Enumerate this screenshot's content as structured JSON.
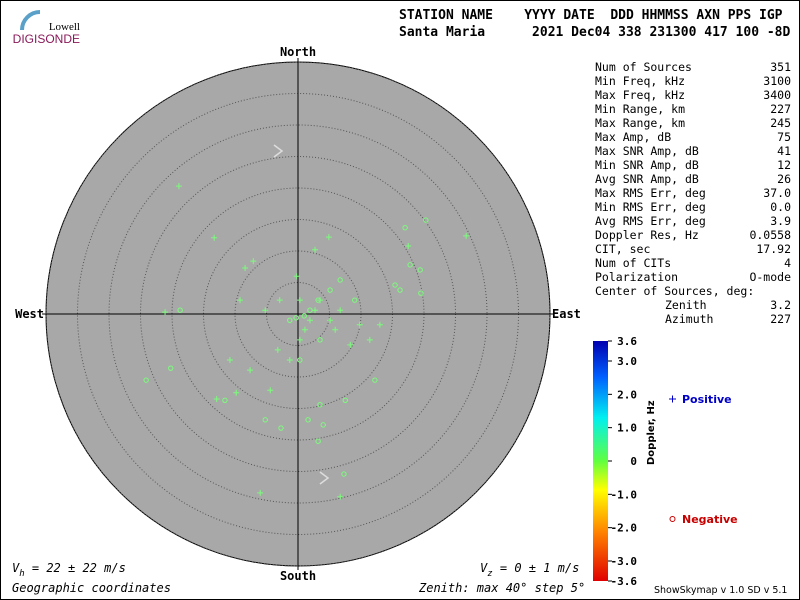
{
  "logo": {
    "top": "Lowell",
    "bottom": "DIGISONDE"
  },
  "header": {
    "line1": "STATION NAME    YYYY DATE  DDD HHMMSS AXN PPS IGP",
    "line2": "Santa Maria      2021 Dec04 338 231300 417 100 -8D"
  },
  "stats": {
    "rows": [
      [
        "Num of Sources",
        "351"
      ],
      [
        "Min Freq, kHz",
        "3100"
      ],
      [
        "Max Freq, kHz",
        "3400"
      ],
      [
        "Min Range, km",
        "227"
      ],
      [
        "Max Range, km",
        "245"
      ],
      [
        "Max Amp, dB",
        "75"
      ],
      [
        "Max SNR Amp, dB",
        "41"
      ],
      [
        "Min SNR Amp, dB",
        "12"
      ],
      [
        "Avg SNR Amp, dB",
        "26"
      ],
      [
        "Max RMS Err, deg",
        "37.0"
      ],
      [
        "Min RMS Err, deg",
        "0.0"
      ],
      [
        "Avg RMS Err, deg",
        "3.9"
      ],
      [
        "Doppler Res, Hz",
        "0.0558"
      ],
      [
        "CIT, sec",
        "17.92"
      ],
      [
        "Num of CITs",
        "4"
      ],
      [
        "Polarization",
        "O-mode"
      ]
    ],
    "center_title": "Center of Sources, deg:",
    "center_rows": [
      [
        "Zenith",
        "3.2"
      ],
      [
        "Azimuth",
        "227"
      ]
    ]
  },
  "chart_data": {
    "type": "skymap",
    "directions": {
      "north": "North",
      "south": "South",
      "east": "East",
      "west": "West"
    },
    "xlim": [
      -40,
      40
    ],
    "ylim": [
      -40,
      40
    ],
    "rticks": [
      5,
      10,
      15,
      20,
      25,
      30,
      35,
      40
    ],
    "grid": true,
    "series": [
      {
        "name": "Positive",
        "marker": "+",
        "color": "#7dfb7d",
        "legend_color": "#0000c8",
        "x": [
          -18.9,
          -13.3,
          -6.0,
          6.7,
          17.5,
          26.7,
          -9.8,
          -12.9,
          -21.1,
          -0.2,
          2.7,
          4.9,
          -8.4,
          -7.1,
          -3.2,
          -4.4,
          0.3,
          3.5,
          5.9,
          8.3,
          11.4,
          13.0,
          -10.8,
          -7.6,
          -1.3,
          1.1,
          2.7,
          5.1,
          6.7,
          9.8,
          -5.2,
          -2.9,
          -9.2,
          0.3,
          1.9
        ],
        "y": [
          20.3,
          12.1,
          -28.4,
          -29.0,
          10.8,
          12.4,
          -12.5,
          -13.5,
          0.3,
          6.0,
          10.2,
          12.2,
          7.3,
          8.4,
          -5.7,
          -12.1,
          2.2,
          2.2,
          -2.5,
          -4.9,
          -4.1,
          -1.7,
          -7.3,
          -8.9,
          -7.3,
          -2.5,
          0.6,
          -1.0,
          0.6,
          -1.7,
          0.6,
          2.2,
          2.2,
          -4.1,
          -1.0
        ]
      },
      {
        "name": "Negative",
        "marker": "o",
        "color": "#7dfb7d",
        "legend_color": "#c80000",
        "x": [
          -24.1,
          -18.7,
          -20.2,
          -2.7,
          3.2,
          4.0,
          7.3,
          12.2,
          17.0,
          20.3,
          17.8,
          19.4,
          15.4,
          16.2,
          19.5,
          3.5,
          7.5,
          -11.6,
          0.3,
          3.5,
          -1.3,
          1.9,
          5.1,
          9.0,
          6.7,
          -5.2,
          1.6,
          3.2,
          -0.3,
          1.0
        ],
        "y": [
          -10.5,
          0.6,
          -8.6,
          -18.1,
          -20.2,
          -17.6,
          -25.4,
          -10.5,
          13.7,
          14.9,
          7.8,
          7.0,
          4.6,
          3.8,
          3.3,
          -14.4,
          -13.7,
          -13.7,
          -7.3,
          -4.1,
          -1.0,
          0.6,
          3.8,
          2.2,
          5.4,
          -16.8,
          -16.8,
          2.2,
          -0.6,
          -0.3
        ]
      }
    ],
    "colorbar": {
      "label": "Doppler, Hz",
      "lim": [
        -3.6,
        3.6
      ],
      "ticks": [
        3.6,
        {
          "value": 3,
          "label": "3.0"
        },
        {
          "value": 2,
          "label": "2.0"
        },
        {
          "value": 1,
          "label": "1.0"
        },
        0,
        {
          "value": -1,
          "label": "-1.0"
        },
        {
          "value": -2,
          "label": "-2.0"
        },
        {
          "value": -3,
          "label": "-3.0"
        },
        -3.6
      ]
    }
  },
  "footer": {
    "vh_symbol": "V",
    "vh_sub": "h",
    "vh_text": " = 22 ± 22 m/s",
    "vz_symbol": "V",
    "vz_sub": "z",
    "vz_text": " = 0 ± 1 m/s",
    "coords": "Geographic coordinates",
    "zenith": "Zenith: max 40°  step 5°",
    "version": "ShowSkymap v 1.0  SD v 5.1"
  }
}
